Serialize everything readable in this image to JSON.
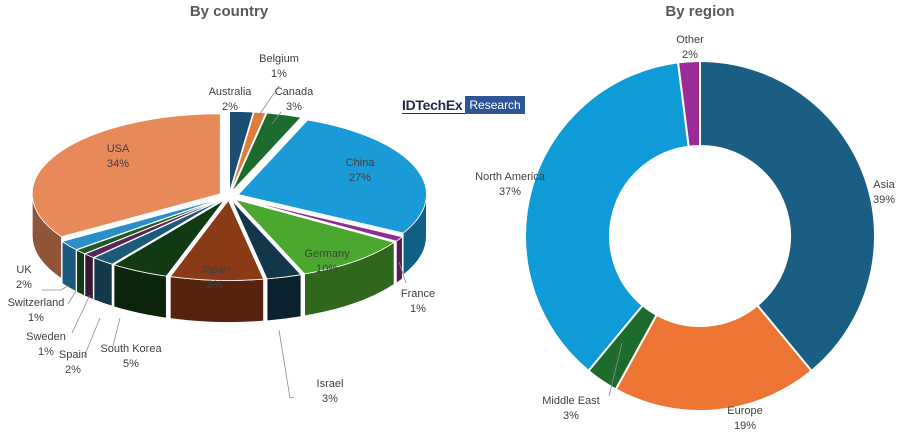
{
  "brand": {
    "name": "IDTechEx",
    "tag": "Research"
  },
  "chart_data": [
    {
      "type": "pie",
      "title": "By country",
      "style": "3d",
      "slices": [
        {
          "label": "Australia",
          "value": "2%",
          "pct": 2,
          "color": "#1b4f72"
        },
        {
          "label": "Belgium",
          "value": "1%",
          "pct": 1,
          "color": "#e07b39"
        },
        {
          "label": "Canada",
          "value": "3%",
          "pct": 3,
          "color": "#1e6b2e"
        },
        {
          "label": "China",
          "value": "27%",
          "pct": 27,
          "color": "#1a9ad7"
        },
        {
          "label": "France",
          "value": "1%",
          "pct": 1,
          "color": "#8e2c8f"
        },
        {
          "label": "Germany",
          "value": "10%",
          "pct": 10,
          "color": "#4ba82e"
        },
        {
          "label": "Israel",
          "value": "3%",
          "pct": 3,
          "color": "#13364a"
        },
        {
          "label": "Japan",
          "value": "8%",
          "pct": 8,
          "color": "#8a3a16"
        },
        {
          "label": "South Korea",
          "value": "5%",
          "pct": 5,
          "color": "#123a12"
        },
        {
          "label": "Spain",
          "value": "2%",
          "pct": 2,
          "color": "#1d5a78"
        },
        {
          "label": "Sweden",
          "value": "1%",
          "pct": 1,
          "color": "#5a2558"
        },
        {
          "label": "Switzerland",
          "value": "1%",
          "pct": 1,
          "color": "#1f5a24"
        },
        {
          "label": "UK",
          "value": "2%",
          "pct": 2,
          "color": "#2a8fc6"
        },
        {
          "label": "USA",
          "value": "34%",
          "pct": 34,
          "color": "#e8895a"
        }
      ]
    },
    {
      "type": "pie",
      "title": "By region",
      "style": "donut",
      "slices": [
        {
          "label": "Asia",
          "value": "39%",
          "pct": 39,
          "color": "#1b5e84"
        },
        {
          "label": "Europe",
          "value": "19%",
          "pct": 19,
          "color": "#ec7533"
        },
        {
          "label": "Middle East",
          "value": "3%",
          "pct": 3,
          "color": "#1e6b2e"
        },
        {
          "label": "North America",
          "value": "37%",
          "pct": 37,
          "color": "#0f9ad8"
        },
        {
          "label": "Other",
          "value": "2%",
          "pct": 2,
          "color": "#9b2b96"
        }
      ]
    }
  ]
}
